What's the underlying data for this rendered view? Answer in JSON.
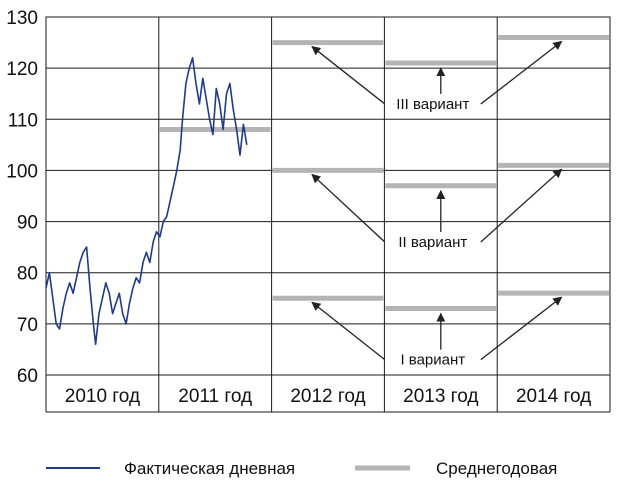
{
  "chart_data": {
    "type": "line",
    "ylim": [
      60,
      130
    ],
    "yticks": [
      "60",
      "70",
      "80",
      "90",
      "100",
      "110",
      "120",
      "130"
    ],
    "categories": [
      "2010 год",
      "2011 год",
      "2012 год",
      "2013 год",
      "2014 год"
    ],
    "grid": true,
    "legend_position": "bottom",
    "colors": {
      "daily": "#1f3a8a",
      "average": "#b4b4b4",
      "grid": "#1a1a1a",
      "arrow": "#222222"
    },
    "series": [
      {
        "name": "Фактическая дневная",
        "kind": "daily",
        "points": [
          [
            0.0,
            77
          ],
          [
            0.03,
            80
          ],
          [
            0.06,
            75
          ],
          [
            0.09,
            70
          ],
          [
            0.12,
            69
          ],
          [
            0.15,
            73
          ],
          [
            0.18,
            76
          ],
          [
            0.21,
            78
          ],
          [
            0.24,
            76
          ],
          [
            0.27,
            79
          ],
          [
            0.3,
            82
          ],
          [
            0.33,
            84
          ],
          [
            0.36,
            85
          ],
          [
            0.39,
            77
          ],
          [
            0.42,
            70
          ],
          [
            0.44,
            66
          ],
          [
            0.47,
            72
          ],
          [
            0.5,
            75
          ],
          [
            0.53,
            78
          ],
          [
            0.56,
            76
          ],
          [
            0.59,
            72
          ],
          [
            0.62,
            74
          ],
          [
            0.65,
            76
          ],
          [
            0.68,
            72
          ],
          [
            0.71,
            70
          ],
          [
            0.74,
            74
          ],
          [
            0.77,
            77
          ],
          [
            0.8,
            79
          ],
          [
            0.83,
            78
          ],
          [
            0.86,
            82
          ],
          [
            0.89,
            84
          ],
          [
            0.92,
            82
          ],
          [
            0.95,
            86
          ],
          [
            0.98,
            88
          ],
          [
            1.01,
            87
          ],
          [
            1.04,
            90
          ],
          [
            1.07,
            91
          ],
          [
            1.1,
            94
          ],
          [
            1.13,
            97
          ],
          [
            1.16,
            100
          ],
          [
            1.19,
            104
          ],
          [
            1.21,
            110
          ],
          [
            1.24,
            117
          ],
          [
            1.27,
            120
          ],
          [
            1.3,
            122
          ],
          [
            1.33,
            117
          ],
          [
            1.36,
            113
          ],
          [
            1.39,
            118
          ],
          [
            1.42,
            114
          ],
          [
            1.45,
            110
          ],
          [
            1.48,
            107
          ],
          [
            1.51,
            116
          ],
          [
            1.54,
            113
          ],
          [
            1.57,
            108
          ],
          [
            1.6,
            115
          ],
          [
            1.63,
            117
          ],
          [
            1.66,
            112
          ],
          [
            1.69,
            108
          ],
          [
            1.72,
            103
          ],
          [
            1.75,
            109
          ],
          [
            1.78,
            105
          ]
        ]
      },
      {
        "name": "Среднегодовая",
        "kind": "average",
        "segments": [
          {
            "year": "2011",
            "value": 108
          },
          {
            "year": "2012",
            "value": 125
          },
          {
            "year": "2012",
            "value": 100
          },
          {
            "year": "2012",
            "value": 75
          },
          {
            "year": "2013",
            "value": 121
          },
          {
            "year": "2013",
            "value": 97
          },
          {
            "year": "2013",
            "value": 73
          },
          {
            "year": "2014",
            "value": 126
          },
          {
            "year": "2014",
            "value": 101
          },
          {
            "year": "2014",
            "value": 76
          }
        ]
      }
    ],
    "annotations": [
      {
        "label": "III вариант",
        "y": 113,
        "targets": [
          125,
          121,
          126
        ]
      },
      {
        "label": "II вариант",
        "y": 86,
        "targets": [
          100,
          97,
          101
        ]
      },
      {
        "label": "I вариант",
        "y": 63,
        "targets": [
          75,
          73,
          76
        ]
      }
    ]
  },
  "legend": {
    "daily_label": "Фактическая дневная",
    "average_label": "Среднегодовая"
  }
}
